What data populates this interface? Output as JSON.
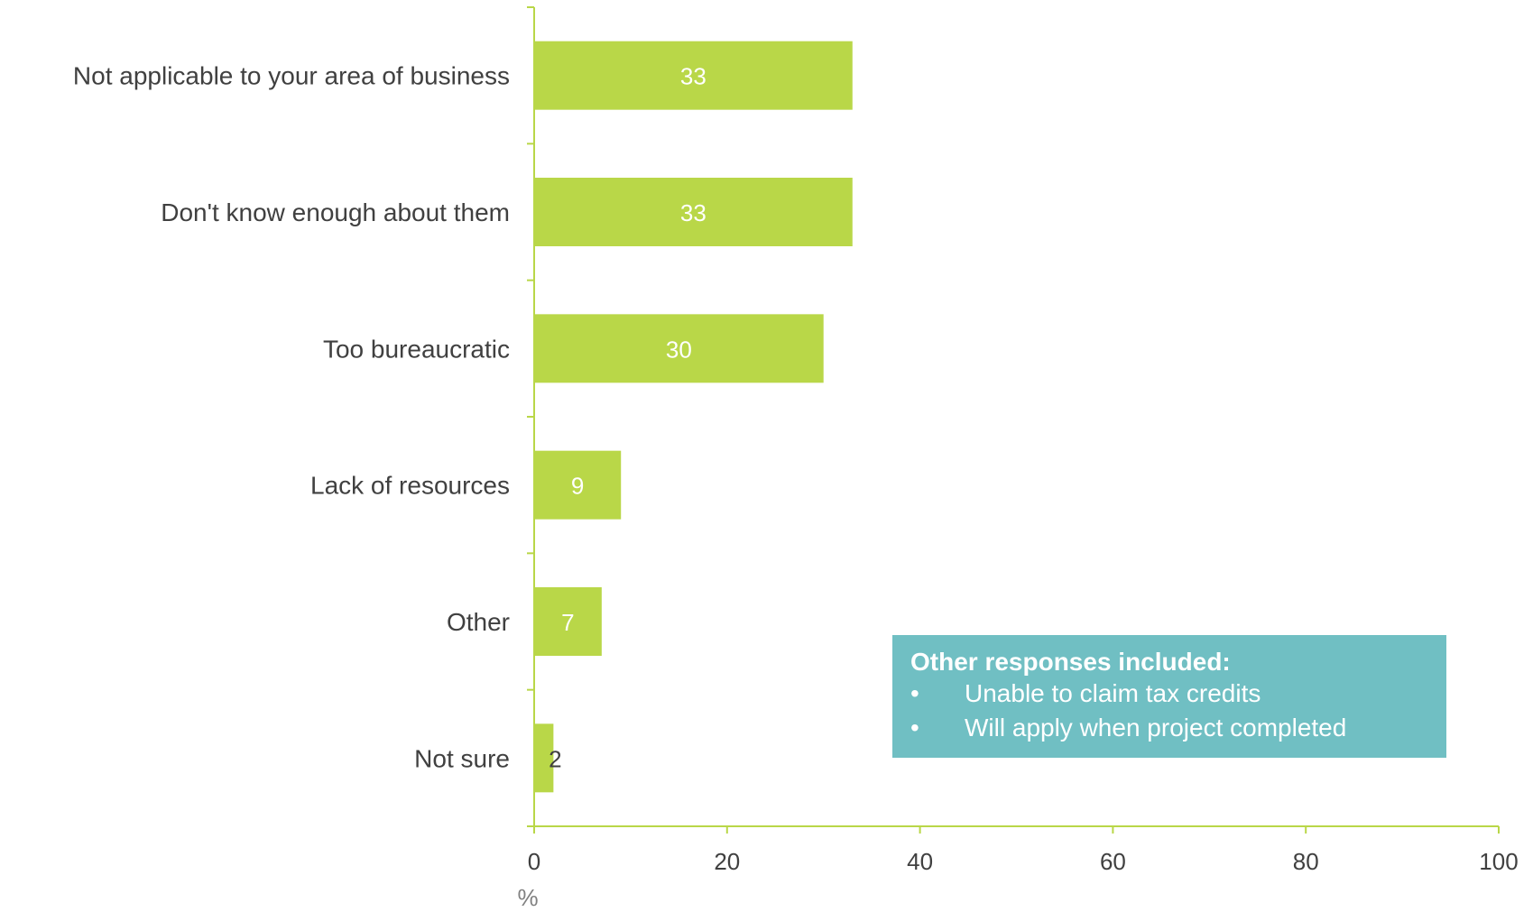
{
  "chart_data": {
    "type": "bar",
    "orientation": "horizontal",
    "categories": [
      "Not applicable to your area of business",
      "Don't know enough about them",
      "Too bureaucratic",
      "Lack of resources",
      "Other",
      "Not sure"
    ],
    "values": [
      33,
      33,
      30,
      9,
      7,
      2
    ],
    "xlabel": "%",
    "xlim": [
      0,
      100
    ],
    "xticks": [
      "0",
      "20",
      "40",
      "60",
      "80",
      "100"
    ],
    "grid": false,
    "bar_color": "#b9d748",
    "axis_color": "#b9d748",
    "data_label_color": "#ffffff",
    "data_label_color_outside": "#404040"
  },
  "callout": {
    "title": "Other responses included:",
    "bullet": "•",
    "items": [
      "Unable to claim tax credits",
      "Will apply when project completed"
    ],
    "background": "#70bfc3"
  }
}
